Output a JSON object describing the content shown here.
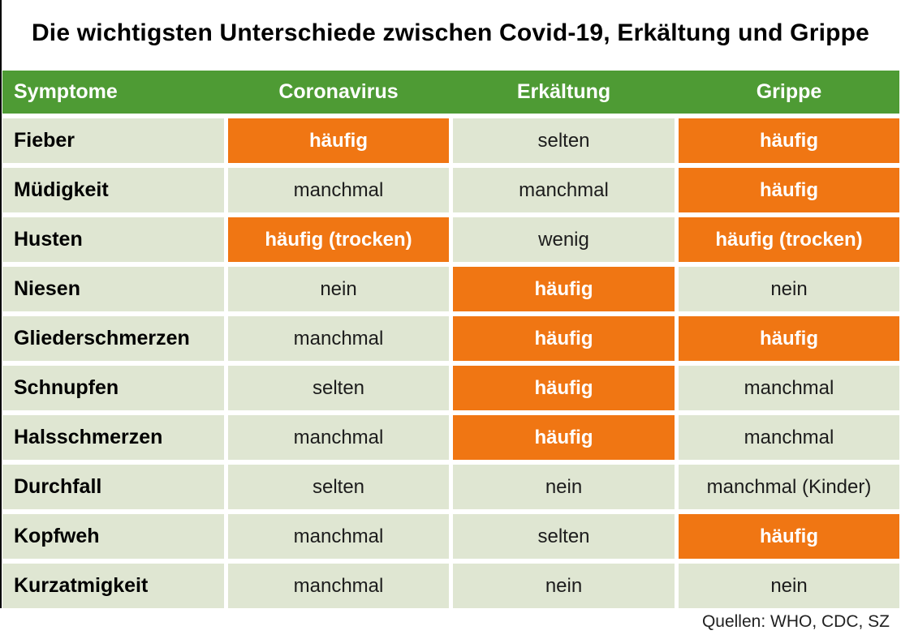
{
  "title": "Die wichtigsten Unterschiede zwischen Covid-19, Erkältung und Grippe",
  "footer": "Quellen: WHO, CDC, SZ",
  "colors": {
    "header_green": "#4e9b34",
    "highlight_orange": "#f07613",
    "cell_light_green": "#dfe6d2",
    "header_text": "#ffffff",
    "body_text": "#1c1c1c"
  },
  "chart_data": {
    "type": "table",
    "columns": [
      "Symptome",
      "Coronavirus",
      "Erkältung",
      "Grippe"
    ],
    "highlight_meaning": "orange cell = häufig / frequent occurrence",
    "rows": [
      {
        "symptom": "Fieber",
        "cells": [
          {
            "text": "häufig",
            "highlight": true
          },
          {
            "text": "selten",
            "highlight": false
          },
          {
            "text": "häufig",
            "highlight": true
          }
        ]
      },
      {
        "symptom": "Müdigkeit",
        "cells": [
          {
            "text": "manchmal",
            "highlight": false
          },
          {
            "text": "manchmal",
            "highlight": false
          },
          {
            "text": "häufig",
            "highlight": true
          }
        ]
      },
      {
        "symptom": "Husten",
        "cells": [
          {
            "text": "häufig (trocken)",
            "highlight": true
          },
          {
            "text": "wenig",
            "highlight": false
          },
          {
            "text": "häufig (trocken)",
            "highlight": true
          }
        ]
      },
      {
        "symptom": "Niesen",
        "cells": [
          {
            "text": "nein",
            "highlight": false
          },
          {
            "text": "häufig",
            "highlight": true
          },
          {
            "text": "nein",
            "highlight": false
          }
        ]
      },
      {
        "symptom": "Gliederschmerzen",
        "cells": [
          {
            "text": "manchmal",
            "highlight": false
          },
          {
            "text": "häufig",
            "highlight": true
          },
          {
            "text": "häufig",
            "highlight": true
          }
        ]
      },
      {
        "symptom": "Schnupfen",
        "cells": [
          {
            "text": "selten",
            "highlight": false
          },
          {
            "text": "häufig",
            "highlight": true
          },
          {
            "text": "manchmal",
            "highlight": false
          }
        ]
      },
      {
        "symptom": "Halsschmerzen",
        "cells": [
          {
            "text": "manchmal",
            "highlight": false
          },
          {
            "text": "häufig",
            "highlight": true
          },
          {
            "text": "manchmal",
            "highlight": false
          }
        ]
      },
      {
        "symptom": "Durchfall",
        "cells": [
          {
            "text": "selten",
            "highlight": false
          },
          {
            "text": "nein",
            "highlight": false
          },
          {
            "text": "manchmal (Kinder)",
            "highlight": false
          }
        ]
      },
      {
        "symptom": "Kopfweh",
        "cells": [
          {
            "text": "manchmal",
            "highlight": false
          },
          {
            "text": "selten",
            "highlight": false
          },
          {
            "text": "häufig",
            "highlight": true
          }
        ]
      },
      {
        "symptom": "Kurzatmigkeit",
        "cells": [
          {
            "text": "manchmal",
            "highlight": false
          },
          {
            "text": "nein",
            "highlight": false
          },
          {
            "text": "nein",
            "highlight": false
          }
        ]
      }
    ]
  }
}
